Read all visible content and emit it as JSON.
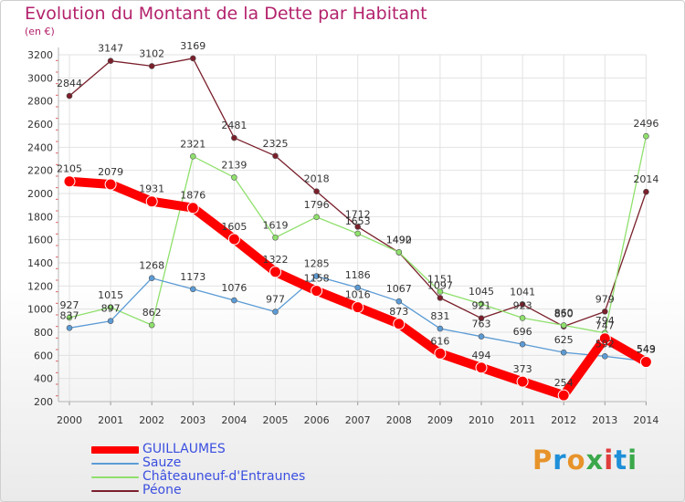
{
  "title": "Evolution du Montant de la Dette par Habitant",
  "unit_label": "(en €)",
  "logo": {
    "text": "Proxiti",
    "colors": [
      "#e7932a",
      "#1e8fd8",
      "#e7932a",
      "#3aa84a",
      "#e03c3c",
      "#1e8fd8",
      "#3aa84a"
    ]
  },
  "chart_data": {
    "type": "line",
    "x": [
      "2000",
      "2001",
      "2002",
      "2003",
      "2004",
      "2005",
      "2006",
      "2007",
      "2008",
      "2009",
      "2010",
      "2011",
      "2012",
      "2013",
      "2014"
    ],
    "ylim": [
      200,
      3200
    ],
    "yticks": [
      200,
      400,
      600,
      800,
      1000,
      1200,
      1400,
      1600,
      1800,
      2000,
      2200,
      2400,
      2600,
      2800,
      3000,
      3200
    ],
    "grid": true,
    "legend_position": "bottom-left",
    "series": [
      {
        "name": "GUILLAUMES",
        "color": "#ff0000",
        "values": [
          2105,
          2079,
          1931,
          1876,
          1605,
          1322,
          1158,
          1016,
          873,
          616,
          494,
          373,
          254,
          747,
          543
        ]
      },
      {
        "name": "Sauze",
        "color": "#5b9bd5",
        "values": [
          837,
          897,
          1268,
          1173,
          1076,
          977,
          1285,
          1186,
          1067,
          831,
          763,
          696,
          625,
          592,
          549
        ]
      },
      {
        "name": "Châteauneuf-d'Entraunes",
        "color": "#8fe06c",
        "values": [
          927,
          1015,
          862,
          2321,
          2139,
          1619,
          1796,
          1653,
          1492,
          1151,
          1045,
          923,
          860,
          794,
          2496
        ]
      },
      {
        "name": "Péone",
        "color": "#7a1f2b",
        "values": [
          2844,
          3147,
          3102,
          3169,
          2481,
          2325,
          2018,
          1712,
          1490,
          1097,
          921,
          1041,
          850,
          979,
          2014
        ]
      }
    ]
  }
}
